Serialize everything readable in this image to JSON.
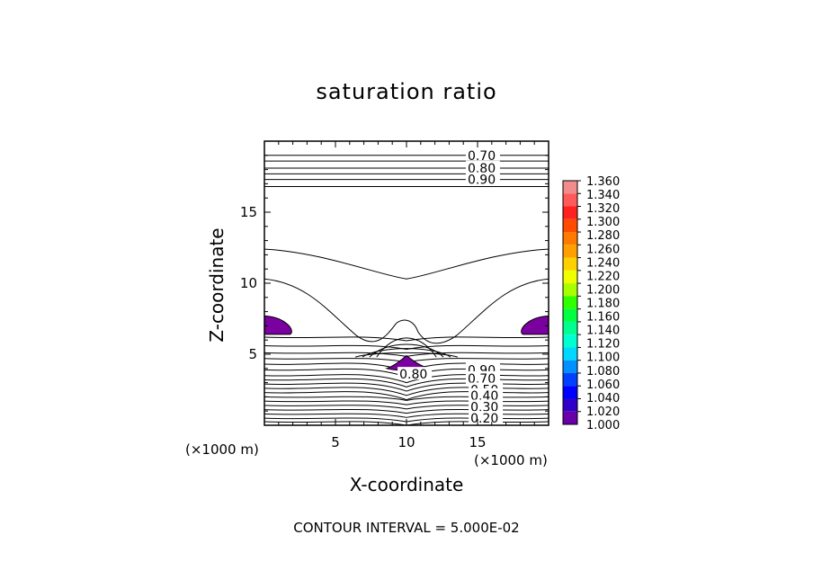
{
  "chart_data": {
    "type": "contour",
    "title": "saturation ratio",
    "xlabel": "X-coordinate",
    "ylabel": "Z-coordinate",
    "x_unit": "(×1000 m)",
    "y_unit": "(×1000 m)",
    "xlim": [
      0,
      20
    ],
    "ylim": [
      0,
      20
    ],
    "xticks": [
      5,
      10,
      15
    ],
    "yticks": [
      5,
      10,
      15
    ],
    "contour_interval_text": "CONTOUR INTERVAL = 5.000E-02",
    "contour_labels": [
      {
        "text": "0.70",
        "x": 14.3,
        "y": 19.0
      },
      {
        "text": "0.80",
        "x": 14.3,
        "y": 18.1
      },
      {
        "text": "0.90",
        "x": 14.3,
        "y": 17.3
      },
      {
        "text": "0.90",
        "x": 14.3,
        "y": 3.9
      },
      {
        "text": "0.70",
        "x": 14.3,
        "y": 3.3
      },
      {
        "text": "0.50",
        "x": 14.5,
        "y": 2.5
      },
      {
        "text": "0.40",
        "x": 14.5,
        "y": 2.1
      },
      {
        "text": "0.30",
        "x": 14.5,
        "y": 1.3
      },
      {
        "text": "0.20",
        "x": 14.5,
        "y": 0.5
      },
      {
        "text": "0.80",
        "x": 9.5,
        "y": 3.6
      }
    ],
    "shaded_regions_value": 1.0,
    "shaded_regions": [
      {
        "name": "left-lobe",
        "center": [
          1.0,
          7.0
        ]
      },
      {
        "name": "right-lobe",
        "center": [
          19.0,
          7.0
        ]
      },
      {
        "name": "central-cap",
        "center": [
          10.0,
          4.2
        ]
      }
    ],
    "colorbar": {
      "labels": [
        "1.360",
        "1.340",
        "1.320",
        "1.300",
        "1.280",
        "1.260",
        "1.240",
        "1.220",
        "1.200",
        "1.180",
        "1.160",
        "1.140",
        "1.120",
        "1.100",
        "1.080",
        "1.060",
        "1.040",
        "1.020",
        "1.000"
      ],
      "colors": [
        "#f08c8c",
        "#ff5a5a",
        "#ff2020",
        "#ff4a00",
        "#ff7a00",
        "#ffa000",
        "#ffd000",
        "#f0ff00",
        "#a8ff00",
        "#30ff00",
        "#00ff40",
        "#00ff90",
        "#00ffd0",
        "#00d8ff",
        "#0090ff",
        "#0040ff",
        "#0000ff",
        "#3000c8",
        "#6a00a8"
      ]
    },
    "shade_color": "#7a00a0"
  }
}
